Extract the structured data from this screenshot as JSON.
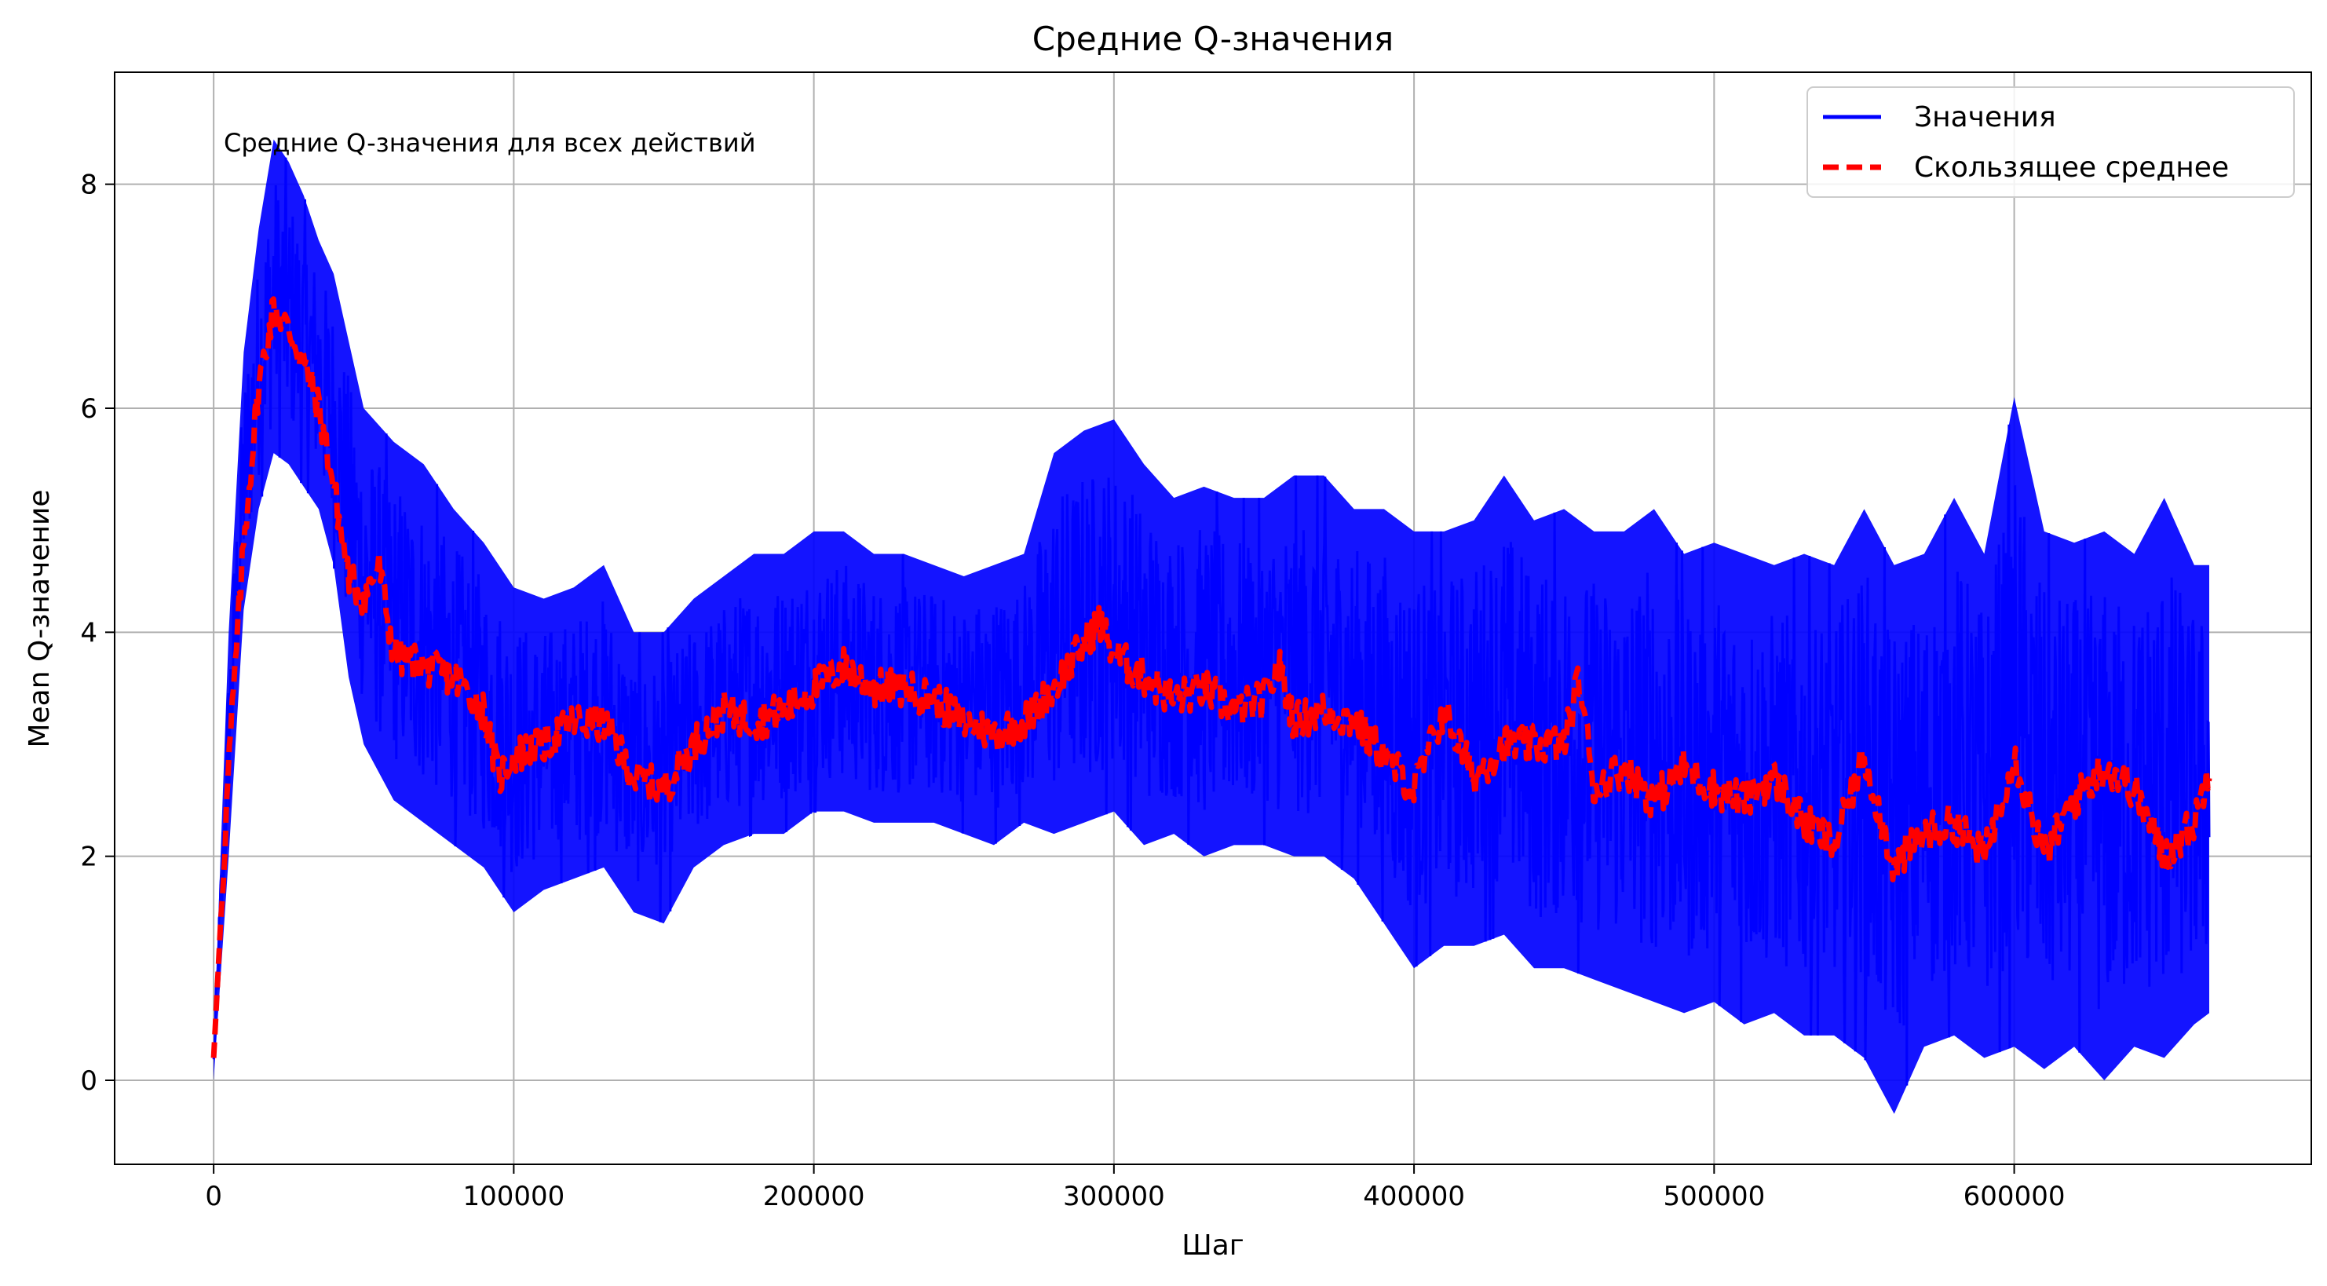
{
  "chart_data": {
    "type": "line",
    "title": "Средние Q-значения",
    "xlabel": "Шаг",
    "ylabel": "Mean Q-значение",
    "annotation": "Средние Q-значения для всех действий",
    "xlim": [
      -33000,
      699000
    ],
    "ylim": [
      -0.75,
      9.0
    ],
    "xticks": [
      0,
      100000,
      200000,
      300000,
      400000,
      500000,
      600000
    ],
    "xtick_labels": [
      "0",
      "100000",
      "200000",
      "300000",
      "400000",
      "500000",
      "600000"
    ],
    "yticks": [
      0,
      2,
      4,
      6,
      8
    ],
    "ytick_labels": [
      "0",
      "2",
      "4",
      "6",
      "8"
    ],
    "grid": true,
    "legend_position": "top-right",
    "series": [
      {
        "name": "Значения",
        "color": "#0000ff",
        "style": "solid",
        "band_envelope": {
          "x": [
            0,
            5000,
            10000,
            15000,
            20000,
            25000,
            30000,
            35000,
            40000,
            45000,
            50000,
            60000,
            70000,
            80000,
            90000,
            100000,
            110000,
            120000,
            130000,
            140000,
            150000,
            160000,
            170000,
            180000,
            190000,
            200000,
            210000,
            220000,
            230000,
            240000,
            250000,
            260000,
            270000,
            280000,
            290000,
            300000,
            310000,
            320000,
            330000,
            340000,
            350000,
            360000,
            370000,
            380000,
            390000,
            400000,
            410000,
            420000,
            430000,
            440000,
            450000,
            460000,
            470000,
            480000,
            490000,
            500000,
            510000,
            520000,
            530000,
            540000,
            550000,
            560000,
            570000,
            580000,
            590000,
            600000,
            610000,
            620000,
            630000,
            640000,
            650000,
            660000,
            665000
          ],
          "upper": [
            0.3,
            4.0,
            6.5,
            7.6,
            8.4,
            8.2,
            7.9,
            7.5,
            7.2,
            6.6,
            6.0,
            5.7,
            5.5,
            5.1,
            4.8,
            4.4,
            4.3,
            4.4,
            4.6,
            4.0,
            4.0,
            4.3,
            4.5,
            4.7,
            4.7,
            4.9,
            4.9,
            4.7,
            4.7,
            4.6,
            4.5,
            4.6,
            4.7,
            5.6,
            5.8,
            5.9,
            5.5,
            5.2,
            5.3,
            5.2,
            5.2,
            5.4,
            5.4,
            5.1,
            5.1,
            4.9,
            4.9,
            5.0,
            5.4,
            5.0,
            5.1,
            4.9,
            4.9,
            5.1,
            4.7,
            4.8,
            4.7,
            4.6,
            4.7,
            4.6,
            5.1,
            4.6,
            4.7,
            5.2,
            4.7,
            6.1,
            4.9,
            4.8,
            4.9,
            4.7,
            5.2,
            4.6,
            4.6
          ],
          "lower": [
            0.0,
            2.0,
            4.2,
            5.1,
            5.6,
            5.5,
            5.3,
            5.1,
            4.6,
            3.6,
            3.0,
            2.5,
            2.3,
            2.1,
            1.9,
            1.5,
            1.7,
            1.8,
            1.9,
            1.5,
            1.4,
            1.9,
            2.1,
            2.2,
            2.2,
            2.4,
            2.4,
            2.3,
            2.3,
            2.3,
            2.2,
            2.1,
            2.3,
            2.2,
            2.3,
            2.4,
            2.1,
            2.2,
            2.0,
            2.1,
            2.1,
            2.0,
            2.0,
            1.8,
            1.4,
            1.0,
            1.2,
            1.2,
            1.3,
            1.0,
            1.0,
            0.9,
            0.8,
            0.7,
            0.6,
            0.7,
            0.5,
            0.6,
            0.4,
            0.4,
            0.2,
            -0.3,
            0.3,
            0.4,
            0.2,
            0.3,
            0.1,
            0.3,
            0.0,
            0.3,
            0.2,
            0.5,
            0.6
          ]
        }
      },
      {
        "name": "Скользящее среднее",
        "color": "#ff0000",
        "style": "dashed",
        "x": [
          0,
          5000,
          10000,
          15000,
          20000,
          25000,
          30000,
          35000,
          40000,
          45000,
          50000,
          55000,
          60000,
          70000,
          80000,
          90000,
          95000,
          100000,
          110000,
          120000,
          130000,
          140000,
          150000,
          160000,
          170000,
          180000,
          190000,
          200000,
          210000,
          220000,
          230000,
          240000,
          250000,
          260000,
          270000,
          280000,
          290000,
          295000,
          300000,
          310000,
          320000,
          330000,
          340000,
          350000,
          355000,
          360000,
          370000,
          380000,
          390000,
          400000,
          410000,
          420000,
          430000,
          440000,
          450000,
          455000,
          460000,
          470000,
          480000,
          490000,
          500000,
          510000,
          520000,
          530000,
          540000,
          550000,
          560000,
          570000,
          580000,
          590000,
          600000,
          610000,
          620000,
          630000,
          640000,
          650000,
          660000,
          665000
        ],
        "y": [
          0.2,
          2.8,
          4.8,
          6.2,
          6.9,
          6.7,
          6.4,
          6.0,
          5.3,
          4.5,
          4.3,
          4.6,
          3.8,
          3.7,
          3.6,
          3.3,
          2.7,
          2.9,
          3.0,
          3.2,
          3.2,
          2.7,
          2.6,
          3.0,
          3.3,
          3.2,
          3.3,
          3.5,
          3.7,
          3.5,
          3.5,
          3.4,
          3.2,
          3.1,
          3.2,
          3.5,
          3.9,
          4.1,
          3.8,
          3.6,
          3.4,
          3.5,
          3.3,
          3.4,
          3.7,
          3.2,
          3.3,
          3.2,
          2.9,
          2.6,
          3.3,
          2.7,
          3.0,
          3.0,
          3.0,
          3.6,
          2.6,
          2.8,
          2.5,
          2.8,
          2.6,
          2.5,
          2.7,
          2.3,
          2.1,
          2.9,
          1.9,
          2.2,
          2.3,
          2.0,
          2.9,
          2.0,
          2.5,
          2.8,
          2.6,
          2.0,
          2.3,
          2.8
        ]
      }
    ]
  }
}
